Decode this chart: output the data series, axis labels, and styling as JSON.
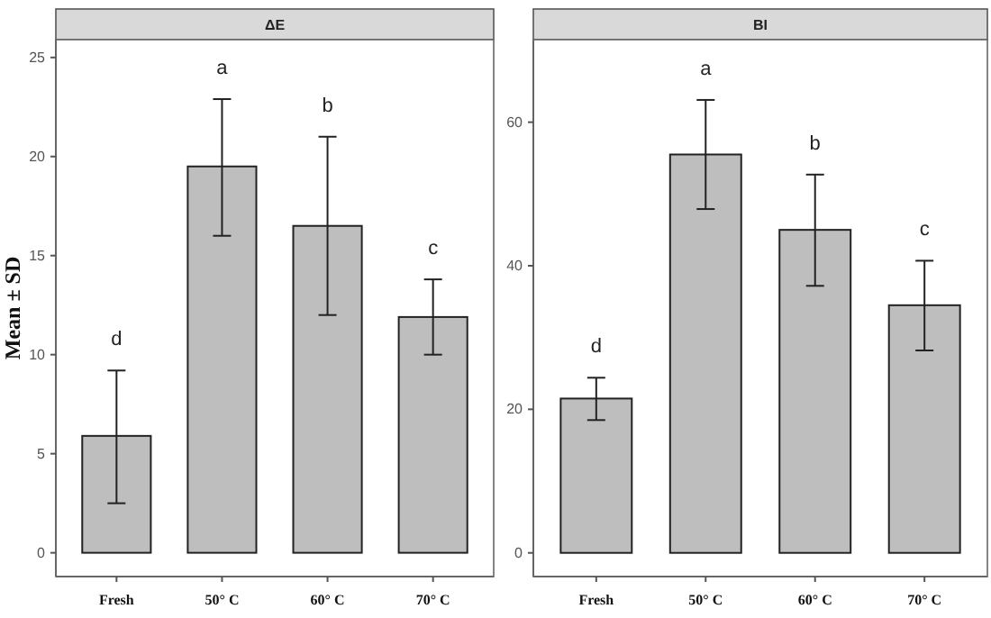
{
  "chart_data": [
    {
      "type": "bar",
      "title": "ΔE",
      "ylabel": "Mean ± SD",
      "categories": [
        "Fresh",
        "50° C",
        "60° C",
        "70° C"
      ],
      "values": [
        5.9,
        19.5,
        16.5,
        11.9
      ],
      "color": "#bebebe",
      "errors": [
        [
          2.5,
          9.2
        ],
        [
          16.0,
          22.9
        ],
        [
          12.0,
          21.0
        ],
        [
          10.0,
          13.8
        ]
      ],
      "ylim": [
        -1.2,
        25.9
      ],
      "yticks": [
        0,
        5,
        10,
        15,
        20,
        25
      ],
      "grid": false,
      "annotations": [
        "d",
        "a",
        "b",
        "c"
      ]
    },
    {
      "type": "bar",
      "title": "BI",
      "categories": [
        "Fresh",
        "50° C",
        "60° C",
        "70° C"
      ],
      "values": [
        21.5,
        55.5,
        45,
        34.5
      ],
      "color": "#bebebe",
      "errors": [
        [
          18.5,
          24.4
        ],
        [
          47.9,
          63.1
        ],
        [
          37.2,
          52.7
        ],
        [
          28.2,
          40.7
        ]
      ],
      "ylim": [
        -3.3,
        71.5
      ],
      "yticks": [
        0,
        20,
        40,
        60
      ],
      "grid": false,
      "annotations": [
        "d",
        "a",
        "b",
        "c"
      ]
    }
  ]
}
